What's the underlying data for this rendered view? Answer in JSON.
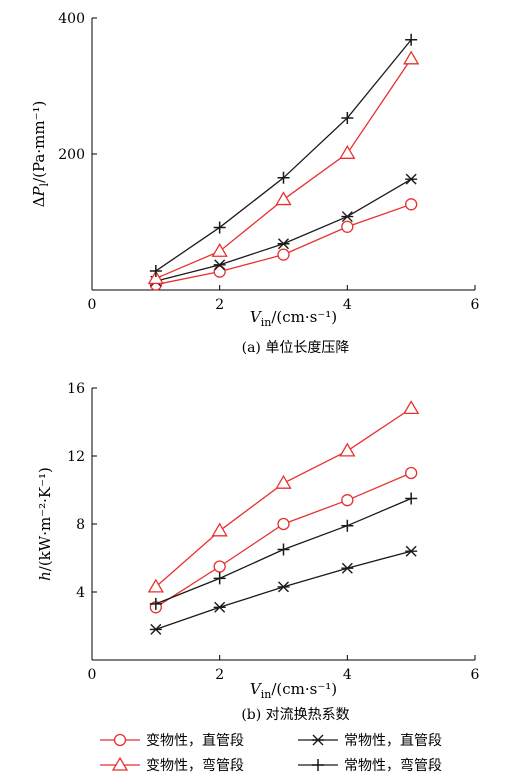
{
  "chart_data": [
    {
      "type": "line",
      "panel": "a",
      "caption": "(a) 单位长度压降",
      "xlabel": "V_in/(cm·s⁻¹)",
      "ylabel": "ΔP_l/(Pa·mm⁻¹)",
      "xlim": [
        0,
        6
      ],
      "ylim": [
        0,
        400
      ],
      "xticks": [
        0,
        2,
        4,
        6
      ],
      "yticks": [
        200,
        400
      ],
      "xtick_labels": [
        "0",
        "2",
        "4",
        "6"
      ],
      "ytick_labels": [
        "200",
        "400"
      ],
      "grid": false,
      "series": [
        {
          "name": "变物性，直管段",
          "color": "#e8312f",
          "marker": "circle",
          "x": [
            1,
            2,
            3,
            4,
            5
          ],
          "y": [
            8,
            27,
            52,
            93,
            126
          ]
        },
        {
          "name": "常物性，直管段",
          "color": "#1a1a1a",
          "marker": "asterisk",
          "x": [
            1,
            2,
            3,
            4,
            5
          ],
          "y": [
            13,
            37,
            68,
            108,
            163
          ]
        },
        {
          "name": "变物性，弯管段",
          "color": "#e8312f",
          "marker": "triangle",
          "x": [
            1,
            2,
            3,
            4,
            5
          ],
          "y": [
            17,
            57,
            133,
            201,
            340
          ]
        },
        {
          "name": "常物性，弯管段",
          "color": "#1a1a1a",
          "marker": "plus",
          "x": [
            1,
            2,
            3,
            4,
            5
          ],
          "y": [
            28,
            92,
            165,
            253,
            368
          ]
        }
      ]
    },
    {
      "type": "line",
      "panel": "b",
      "caption": "(b) 对流换热系数",
      "xlabel": "V_in/(cm·s⁻¹)",
      "ylabel": "h/(kW·m⁻²·K⁻¹)",
      "xlim": [
        0,
        6
      ],
      "ylim": [
        0,
        16
      ],
      "xticks": [
        0,
        2,
        4,
        6
      ],
      "yticks": [
        4,
        8,
        12,
        16
      ],
      "xtick_labels": [
        "0",
        "2",
        "4",
        "6"
      ],
      "ytick_labels": [
        "4",
        "8",
        "12",
        "16"
      ],
      "grid": false,
      "series": [
        {
          "name": "变物性，直管段",
          "color": "#e8312f",
          "marker": "circle",
          "x": [
            1,
            2,
            3,
            4,
            5
          ],
          "y": [
            3.1,
            5.5,
            8.0,
            9.4,
            11.0
          ]
        },
        {
          "name": "常物性，直管段",
          "color": "#1a1a1a",
          "marker": "asterisk",
          "x": [
            1,
            2,
            3,
            4,
            5
          ],
          "y": [
            1.8,
            3.1,
            4.3,
            5.4,
            6.4
          ]
        },
        {
          "name": "变物性，弯管段",
          "color": "#e8312f",
          "marker": "triangle",
          "x": [
            1,
            2,
            3,
            4,
            5
          ],
          "y": [
            4.3,
            7.6,
            10.4,
            12.3,
            14.8
          ]
        },
        {
          "name": "常物性，弯管段",
          "color": "#1a1a1a",
          "marker": "plus",
          "x": [
            1,
            2,
            3,
            4,
            5
          ],
          "y": [
            3.3,
            4.8,
            6.5,
            7.9,
            9.5
          ]
        }
      ]
    }
  ],
  "legend": {
    "placement": "bottom",
    "entries": [
      "变物性，直管段",
      "常物性，直管段",
      "变物性，弯管段",
      "常物性，弯管段"
    ]
  }
}
